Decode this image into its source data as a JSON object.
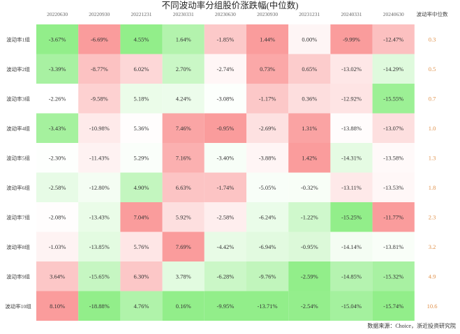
{
  "title": "不同波动率分组股价涨跌幅(中位数)",
  "source": "数据来源：Choice，浙近投资研究院",
  "chart_data": {
    "type": "heatmap",
    "title": "不同波动率分组股价涨跌幅(中位数)",
    "columns": [
      "20220630",
      "20220930",
      "20221231",
      "20230331",
      "20230630",
      "20230930",
      "20231231",
      "20240331",
      "20240630"
    ],
    "extra_column": "波动率中位数",
    "rows": [
      {
        "label": "波动率1组",
        "values": [
          "-3.67%",
          "-6.69%",
          "4.55%",
          "1.64%",
          "-1.85%",
          "1.44%",
          "0.00%",
          "-9.99%",
          "-12.47%"
        ],
        "median": "0.3"
      },
      {
        "label": "波动率2组",
        "values": [
          "-3.39%",
          "-8.77%",
          "6.02%",
          "2.70%",
          "-2.74%",
          "0.73%",
          "0.65%",
          "-13.02%",
          "-14.29%"
        ],
        "median": "0.5"
      },
      {
        "label": "波动率3组",
        "values": [
          "-2.26%",
          "-9.58%",
          "5.18%",
          "4.24%",
          "-3.08%",
          "-1.17%",
          "0.36%",
          "-12.92%",
          "-15.55%"
        ],
        "median": "0.7"
      },
      {
        "label": "波动率4组",
        "values": [
          "-3.43%",
          "-10.98%",
          "5.36%",
          "7.46%",
          "-0.95%",
          "-2.69%",
          "1.31%",
          "-13.88%",
          "-13.07%"
        ],
        "median": "1.0"
      },
      {
        "label": "波动率5组",
        "values": [
          "-2.30%",
          "-11.43%",
          "5.29%",
          "7.16%",
          "-3.40%",
          "-3.88%",
          "1.42%",
          "-14.31%",
          "-13.58%"
        ],
        "median": "1.3"
      },
      {
        "label": "波动率6组",
        "values": [
          "-2.58%",
          "-12.80%",
          "4.90%",
          "6.63%",
          "-1.74%",
          "-5.05%",
          "-0.32%",
          "-13.11%",
          "-13.53%"
        ],
        "median": "1.8"
      },
      {
        "label": "波动率7组",
        "values": [
          "-2.08%",
          "-13.43%",
          "7.04%",
          "5.92%",
          "-2.58%",
          "-6.24%",
          "-1.22%",
          "-15.25%",
          "-11.77%"
        ],
        "median": "2.3"
      },
      {
        "label": "波动率8组",
        "values": [
          "-1.03%",
          "-13.85%",
          "5.76%",
          "7.69%",
          "-4.42%",
          "-6.94%",
          "-0.95%",
          "-14.14%",
          "-13.81%"
        ],
        "median": "3.2"
      },
      {
        "label": "波动率9组",
        "values": [
          "3.64%",
          "-15.65%",
          "6.30%",
          "3.78%",
          "-6.28%",
          "-9.76%",
          "-2.59%",
          "-14.85%",
          "-15.32%"
        ],
        "median": "4.9"
      },
      {
        "label": "波动率10组",
        "values": [
          "8.10%",
          "-18.88%",
          "4.76%",
          "0.16%",
          "-9.95%",
          "-13.71%",
          "-2.54%",
          "-15.04%",
          "-15.74%"
        ],
        "median": "10.6"
      }
    ],
    "colors": {
      "high": "#fa9c9c",
      "mid": "#ffffff",
      "low": "#92ee8a",
      "median_text": "#e0914a",
      "header_text": "#666666",
      "cell_text": "#333333"
    }
  }
}
